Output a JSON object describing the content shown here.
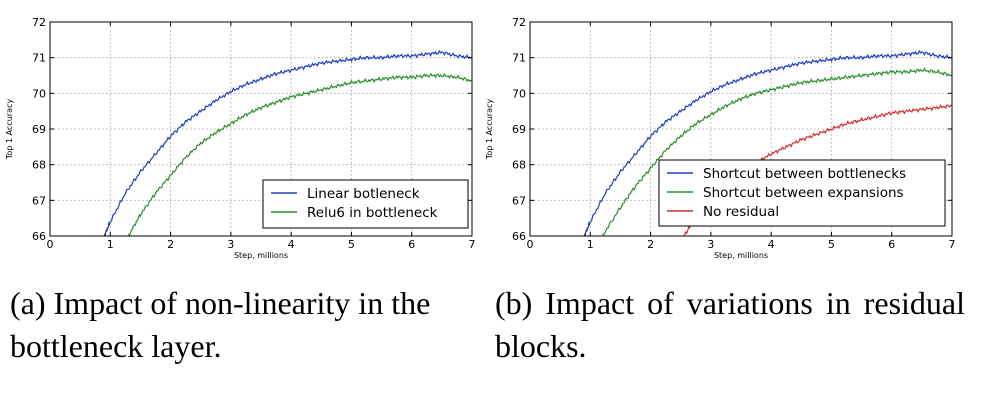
{
  "chart_data": [
    {
      "type": "line",
      "xlabel": "Step, millions",
      "ylabel": "Top 1 Accuracy",
      "xlim": [
        0,
        7
      ],
      "ylim": [
        66,
        72
      ],
      "xticks": [
        "0",
        "1",
        "2",
        "3",
        "4",
        "5",
        "6",
        "7"
      ],
      "yticks": [
        "66",
        "67",
        "68",
        "69",
        "70",
        "71",
        "72"
      ],
      "grid": true,
      "legend_position": "bottom-right",
      "caption": "(a) Impact of non-linearity in the bottleneck layer.",
      "series": [
        {
          "name": "Linear botleneck",
          "color": "#1f3fbf",
          "x": [
            0.9,
            1.0,
            1.25,
            1.5,
            1.75,
            2.0,
            2.25,
            2.5,
            2.75,
            3.0,
            3.25,
            3.5,
            3.75,
            4.0,
            4.25,
            4.5,
            4.75,
            5.0,
            5.25,
            5.5,
            5.75,
            6.0,
            6.25,
            6.5,
            6.75,
            7.0
          ],
          "y": [
            66.0,
            66.4,
            67.2,
            67.8,
            68.3,
            68.8,
            69.2,
            69.5,
            69.8,
            70.05,
            70.25,
            70.4,
            70.55,
            70.65,
            70.75,
            70.85,
            70.9,
            70.95,
            71.0,
            71.0,
            71.05,
            71.05,
            71.1,
            71.15,
            71.05,
            71.0
          ]
        },
        {
          "name": "Relu6 in bottleneck",
          "color": "#2a8f2a",
          "x": [
            1.3,
            1.5,
            1.75,
            2.0,
            2.25,
            2.5,
            2.75,
            3.0,
            3.25,
            3.5,
            3.75,
            4.0,
            4.25,
            4.5,
            4.75,
            5.0,
            5.25,
            5.5,
            5.75,
            6.0,
            6.25,
            6.5,
            6.75,
            7.0
          ],
          "y": [
            66.0,
            66.6,
            67.2,
            67.7,
            68.2,
            68.6,
            68.9,
            69.15,
            69.4,
            69.6,
            69.75,
            69.9,
            70.0,
            70.1,
            70.2,
            70.3,
            70.35,
            70.4,
            70.45,
            70.45,
            70.5,
            70.5,
            70.45,
            70.35
          ]
        }
      ]
    },
    {
      "type": "line",
      "xlabel": "Step, millions",
      "ylabel": "Top 1 Accuracy",
      "xlim": [
        0,
        7
      ],
      "ylim": [
        66,
        72
      ],
      "xticks": [
        "0",
        "1",
        "2",
        "3",
        "4",
        "5",
        "6",
        "7"
      ],
      "yticks": [
        "66",
        "67",
        "68",
        "69",
        "70",
        "71",
        "72"
      ],
      "grid": true,
      "legend_position": "bottom-right",
      "caption": "(b) Impact of variations in residual blocks.",
      "series": [
        {
          "name": "Shortcut between bottlenecks",
          "color": "#1f3fbf",
          "x": [
            0.9,
            1.0,
            1.25,
            1.5,
            1.75,
            2.0,
            2.25,
            2.5,
            2.75,
            3.0,
            3.25,
            3.5,
            3.75,
            4.0,
            4.25,
            4.5,
            4.75,
            5.0,
            5.25,
            5.5,
            5.75,
            6.0,
            6.25,
            6.5,
            6.75,
            7.0
          ],
          "y": [
            66.0,
            66.4,
            67.2,
            67.8,
            68.3,
            68.8,
            69.2,
            69.5,
            69.8,
            70.05,
            70.25,
            70.4,
            70.55,
            70.65,
            70.75,
            70.85,
            70.9,
            70.95,
            71.0,
            71.0,
            71.05,
            71.05,
            71.1,
            71.15,
            71.05,
            71.0
          ]
        },
        {
          "name": "Shortcut between expansions",
          "color": "#2a8f2a",
          "x": [
            1.2,
            1.5,
            1.75,
            2.0,
            2.25,
            2.5,
            2.75,
            3.0,
            3.25,
            3.5,
            3.75,
            4.0,
            4.25,
            4.5,
            4.75,
            5.0,
            5.25,
            5.5,
            5.75,
            6.0,
            6.25,
            6.5,
            6.75,
            7.0
          ],
          "y": [
            66.0,
            66.8,
            67.4,
            67.9,
            68.4,
            68.8,
            69.15,
            69.4,
            69.65,
            69.85,
            70.0,
            70.1,
            70.2,
            70.3,
            70.35,
            70.4,
            70.45,
            70.5,
            70.55,
            70.6,
            70.6,
            70.65,
            70.6,
            70.5
          ]
        },
        {
          "name": "No residual",
          "color": "#d03030",
          "x": [
            2.55,
            2.75,
            3.0,
            3.25,
            3.5,
            3.75,
            4.0,
            4.25,
            4.5,
            4.75,
            5.0,
            5.25,
            5.5,
            5.75,
            6.0,
            6.25,
            6.5,
            6.75,
            7.0
          ],
          "y": [
            66.0,
            66.5,
            67.0,
            67.4,
            67.75,
            68.05,
            68.3,
            68.5,
            68.7,
            68.85,
            69.0,
            69.15,
            69.25,
            69.35,
            69.45,
            69.5,
            69.55,
            69.6,
            69.65
          ]
        }
      ]
    }
  ]
}
